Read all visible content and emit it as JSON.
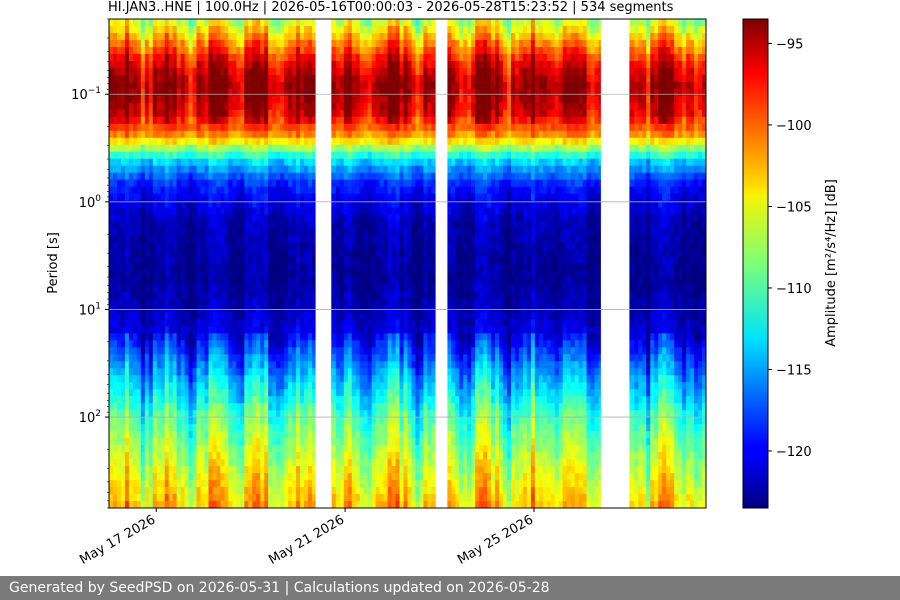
{
  "chart_data": {
    "type": "heatmap",
    "title": "HI.JAN3..HNE | 100.0Hz | 2026-05-16T00:00:03 - 2026-05-28T15:23:52 | 534 segments",
    "ylabel": "Period [s]",
    "y_scale": "log",
    "y_axis_inverted": true,
    "ylim": [
      0.02,
      700
    ],
    "y_ticks": [
      {
        "value": 0.1,
        "base": "10",
        "exp": "−1"
      },
      {
        "value": 1,
        "base": "10",
        "exp": "0"
      },
      {
        "value": 10,
        "base": "10",
        "exp": "1"
      },
      {
        "value": 100,
        "base": "10",
        "exp": "2"
      }
    ],
    "x_axis": "time",
    "xlim": [
      "2026-05-16T00:00:03",
      "2026-05-28T15:23:52"
    ],
    "x_ticks": [
      "May 17 2026",
      "May 21 2026",
      "May 25 2026"
    ],
    "x_tick_dates": [
      "2026-05-17",
      "2026-05-21",
      "2026-05-25"
    ],
    "data_gaps": [
      [
        "2026-05-20T09:00",
        "2026-05-20T17:00"
      ],
      [
        "2026-05-22T22:00",
        "2026-05-23T04:00"
      ],
      [
        "2026-05-26T10:00",
        "2026-05-27T00:30"
      ]
    ],
    "grid": true,
    "colormap": "jet",
    "colorbar": {
      "label": "Amplitude [m²/s⁴/Hz] [dB]",
      "range": [
        -123.5,
        -93.5
      ],
      "ticks": [
        "−95",
        "−100",
        "−105",
        "−110",
        "−115",
        "−120"
      ],
      "tick_values": [
        -95,
        -100,
        -105,
        -110,
        -115,
        -120
      ]
    },
    "spectral_profile": [
      {
        "period": 0.02,
        "db": -107
      },
      {
        "period": 0.05,
        "db": -97
      },
      {
        "period": 0.08,
        "db": -94
      },
      {
        "period": 0.15,
        "db": -96
      },
      {
        "period": 0.25,
        "db": -102
      },
      {
        "period": 0.4,
        "db": -113
      },
      {
        "period": 0.7,
        "db": -119
      },
      {
        "period": 1.5,
        "db": -122
      },
      {
        "period": 5,
        "db": -123
      },
      {
        "period": 15,
        "db": -121
      },
      {
        "period": 40,
        "db": -115
      },
      {
        "period": 100,
        "db": -110
      },
      {
        "period": 300,
        "db": -106
      },
      {
        "period": 700,
        "db": -103
      }
    ]
  },
  "footer": {
    "text": "Generated by SeedPSD on 2026-05-31 | Calculations updated on 2026-05-28"
  }
}
